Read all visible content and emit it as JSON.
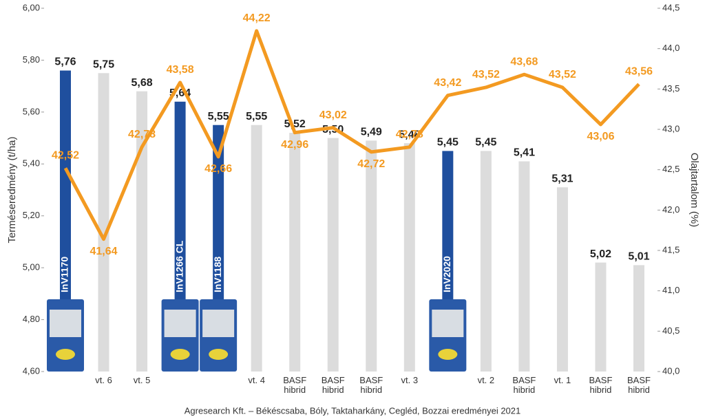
{
  "chart_data": {
    "type": "bar_line",
    "y_label": "Terméseredmény (t/ha)",
    "y2_label": "Olajtartalom (%)",
    "footer": "Agresearch Kft. – Békéscsaba, Bóly, Taktaharkány, Cegléd, Bozzai eredményei 2021",
    "categories": [
      "InV1170",
      "vt. 6",
      "vt. 5",
      "InV1266 CL",
      "InV1188",
      "vt. 4",
      "BASF hibrid",
      "BASF hibrid",
      "BASF hibrid",
      "vt. 3",
      "InV2020",
      "vt. 2",
      "BASF hibrid",
      "vt. 1",
      "BASF hibrid",
      "BASF hibrid"
    ],
    "ylim": [
      4.6,
      6.0
    ],
    "yticks": [
      {
        "value": 4.6,
        "label": "4,60"
      },
      {
        "value": 4.8,
        "label": "4,80"
      },
      {
        "value": 5.0,
        "label": "5,00"
      },
      {
        "value": 5.2,
        "label": "5,20"
      },
      {
        "value": 5.4,
        "label": "5,40"
      },
      {
        "value": 5.6,
        "label": "5,60"
      },
      {
        "value": 5.8,
        "label": "5,80"
      },
      {
        "value": 6.0,
        "label": "6,00"
      }
    ],
    "y2lim": [
      40.0,
      44.5
    ],
    "y2ticks": [
      {
        "value": 40.0,
        "label": "40,0"
      },
      {
        "value": 40.5,
        "label": "40,5"
      },
      {
        "value": 41.0,
        "label": "41,0"
      },
      {
        "value": 41.5,
        "label": "41,5"
      },
      {
        "value": 42.0,
        "label": "42,0"
      },
      {
        "value": 42.5,
        "label": "42,5"
      },
      {
        "value": 43.0,
        "label": "43,0"
      },
      {
        "value": 43.5,
        "label": "43,5"
      },
      {
        "value": 44.0,
        "label": "44,0"
      },
      {
        "value": 44.5,
        "label": "44,5"
      }
    ],
    "highlight_color": "#1f4f9e",
    "series": [
      {
        "type": "bar",
        "values": [
          5.76,
          5.75,
          5.68,
          5.64,
          5.55,
          5.55,
          5.52,
          5.5,
          5.49,
          5.48,
          5.45,
          5.45,
          5.41,
          5.31,
          5.02,
          5.01
        ],
        "value_labels": [
          "5,76",
          "5,75",
          "5,68",
          "5,64",
          "5,55",
          "5,55",
          "5,52",
          "5,50",
          "5,49",
          "5,48",
          "5,45",
          "5,45",
          "5,41",
          "5,31",
          "5,02",
          "5,01"
        ],
        "colors": [
          "#1f4f9e",
          "#dcdcdc",
          "#dcdcdc",
          "#1f4f9e",
          "#1f4f9e",
          "#dcdcdc",
          "#dcdcdc",
          "#dcdcdc",
          "#dcdcdc",
          "#dcdcdc",
          "#1f4f9e",
          "#dcdcdc",
          "#dcdcdc",
          "#dcdcdc",
          "#dcdcdc",
          "#dcdcdc"
        ]
      },
      {
        "type": "line",
        "axis": "y2",
        "color": "#f39a21",
        "values": [
          42.52,
          41.64,
          42.78,
          43.58,
          42.66,
          44.22,
          42.96,
          43.02,
          42.72,
          42.78,
          43.42,
          43.52,
          43.68,
          43.52,
          43.06,
          43.56
        ],
        "value_labels": [
          "42,52",
          "41,64",
          "42,78",
          "43,58",
          "42,66",
          "44,22",
          "42,96",
          "43,02",
          "42,72",
          "42,78",
          "43,42",
          "43,52",
          "43,68",
          "43,52",
          "43,06",
          "43,56"
        ]
      }
    ]
  }
}
